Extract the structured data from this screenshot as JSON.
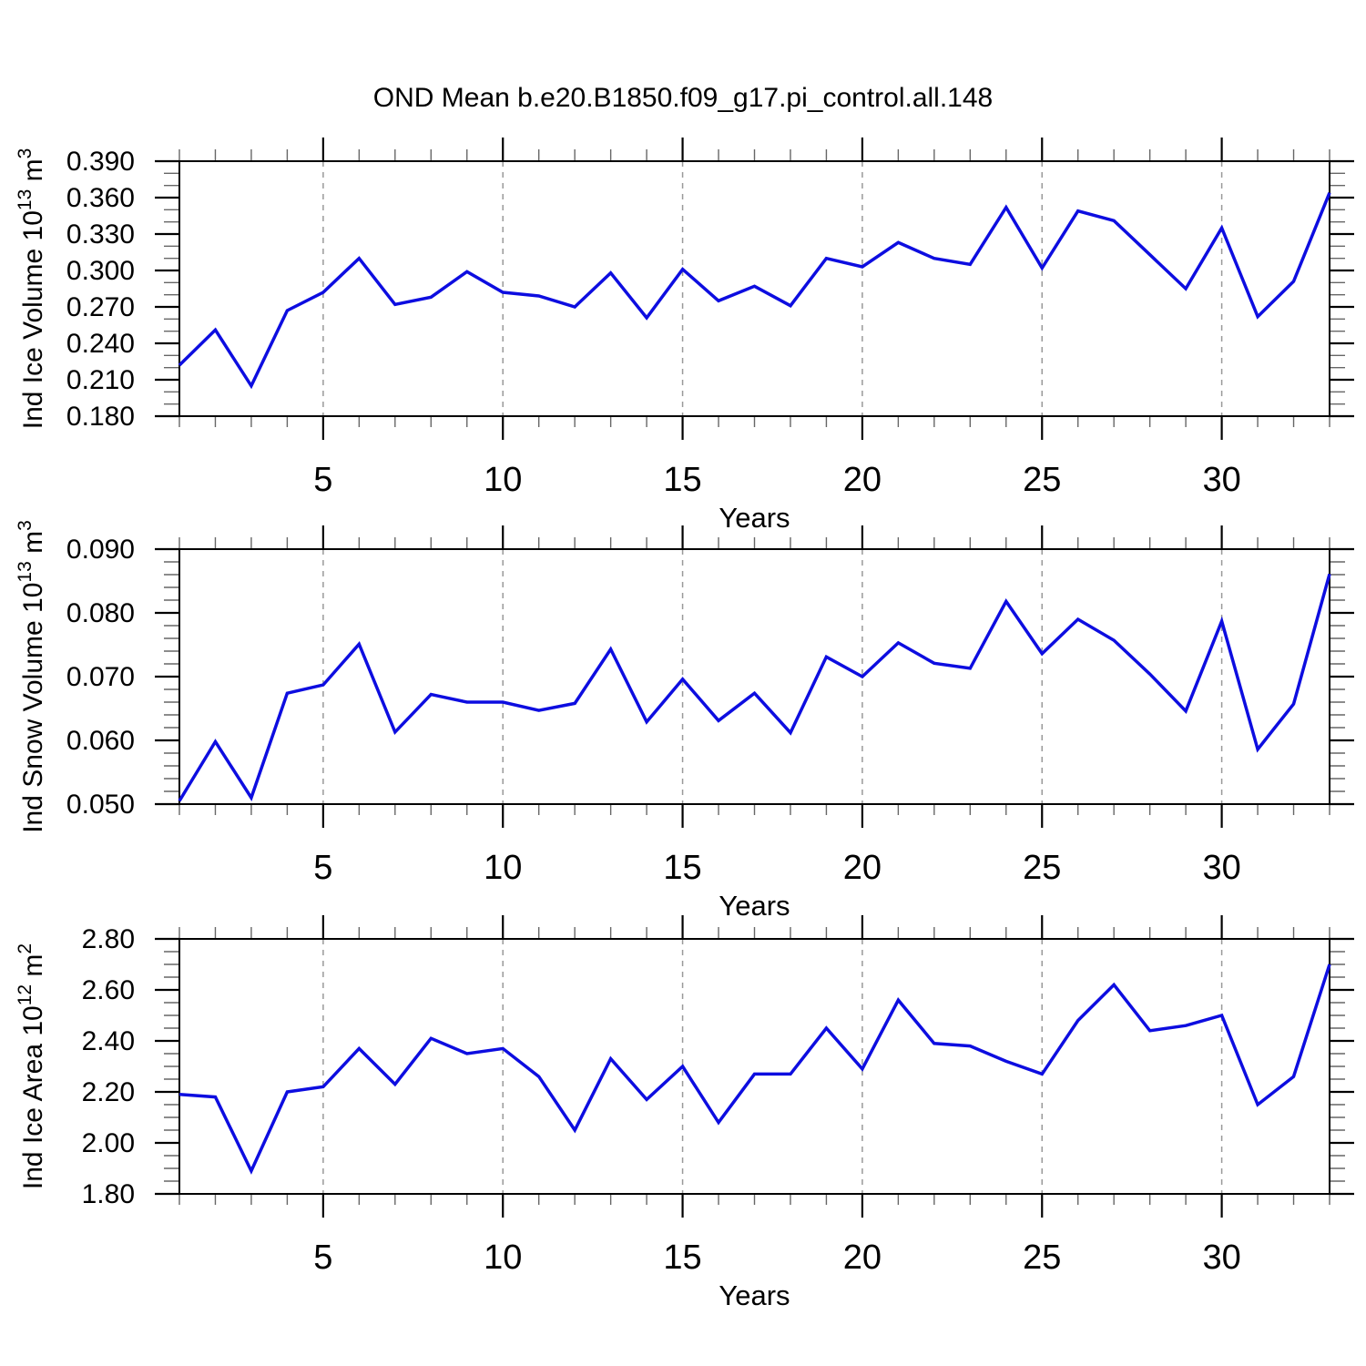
{
  "figure_title": "OND Mean b.e20.B1850.f09_g17.pi_control.all.148",
  "style": {
    "line_color": "#0d0de0",
    "grid_color": "#999999",
    "axis_color": "#000000",
    "minor_tick_color": "#666666",
    "text_color": "#000000",
    "background": "#ffffff"
  },
  "x_axis": {
    "label": "Years",
    "range": [
      1,
      33
    ],
    "major_ticks": [
      5,
      10,
      15,
      20,
      25,
      30
    ],
    "major_tick_labels": [
      "5",
      "10",
      "15",
      "20",
      "25",
      "30"
    ],
    "minor_tick_step": 1
  },
  "chart_data": [
    {
      "type": "line",
      "name": "ind-ice-volume",
      "xlabel": "Years",
      "ylabel": "Ind Ice Volume 10^13 m^3",
      "ylabel_parts": [
        "Ind Ice Volume 10",
        {
          "sup": "13"
        },
        " m",
        {
          "sup": "3"
        }
      ],
      "ylim": [
        0.18,
        0.39
      ],
      "ytick_values": [
        0.18,
        0.21,
        0.24,
        0.27,
        0.3,
        0.33,
        0.36,
        0.39
      ],
      "ytick_labels": [
        "0.180",
        "0.210",
        "0.240",
        "0.270",
        "0.300",
        "0.330",
        "0.360",
        "0.390"
      ],
      "y_minor_step": 0.01,
      "grid": true,
      "legend": "none",
      "x": [
        1,
        2,
        3,
        4,
        5,
        6,
        7,
        8,
        9,
        10,
        11,
        12,
        13,
        14,
        15,
        16,
        17,
        18,
        19,
        20,
        21,
        22,
        23,
        24,
        25,
        26,
        27,
        28,
        29,
        30,
        31,
        32,
        33
      ],
      "values": [
        0.222,
        0.251,
        0.205,
        0.267,
        0.282,
        0.31,
        0.272,
        0.278,
        0.299,
        0.282,
        0.279,
        0.27,
        0.298,
        0.261,
        0.301,
        0.275,
        0.287,
        0.271,
        0.31,
        0.303,
        0.323,
        0.31,
        0.305,
        0.352,
        0.302,
        0.349,
        0.341,
        0.313,
        0.285,
        0.335,
        0.262,
        0.291,
        0.364
      ]
    },
    {
      "type": "line",
      "name": "ind-snow-volume",
      "xlabel": "Years",
      "ylabel": "Ind Snow Volume 10^13 m^3",
      "ylabel_parts": [
        "Ind Snow Volume 10",
        {
          "sup": "13"
        },
        " m",
        {
          "sup": "3"
        }
      ],
      "ylim": [
        0.05,
        0.09
      ],
      "ytick_values": [
        0.05,
        0.06,
        0.07,
        0.08,
        0.09
      ],
      "ytick_labels": [
        "0.050",
        "0.060",
        "0.070",
        "0.080",
        "0.090"
      ],
      "y_minor_step": 0.002,
      "grid": true,
      "legend": "none",
      "x": [
        1,
        2,
        3,
        4,
        5,
        6,
        7,
        8,
        9,
        10,
        11,
        12,
        13,
        14,
        15,
        16,
        17,
        18,
        19,
        20,
        21,
        22,
        23,
        24,
        25,
        26,
        27,
        28,
        29,
        30,
        31,
        32,
        33
      ],
      "values": [
        0.0505,
        0.0598,
        0.051,
        0.0674,
        0.0687,
        0.0751,
        0.0613,
        0.0672,
        0.066,
        0.066,
        0.0647,
        0.0658,
        0.0743,
        0.0629,
        0.0696,
        0.0631,
        0.0674,
        0.0612,
        0.0731,
        0.07,
        0.0753,
        0.0721,
        0.0713,
        0.0818,
        0.0736,
        0.079,
        0.0757,
        0.0704,
        0.0646,
        0.0787,
        0.0586,
        0.0657,
        0.0861
      ]
    },
    {
      "type": "line",
      "name": "ind-ice-area",
      "xlabel": "Years",
      "ylabel": "Ind Ice Area 10^12 m^2",
      "ylabel_parts": [
        "Ind Ice Area 10",
        {
          "sup": "12"
        },
        " m",
        {
          "sup": "2"
        }
      ],
      "ylim": [
        1.8,
        2.8
      ],
      "ytick_values": [
        1.8,
        2.0,
        2.2,
        2.4,
        2.6,
        2.8
      ],
      "ytick_labels": [
        "1.80",
        "2.00",
        "2.20",
        "2.40",
        "2.60",
        "2.80"
      ],
      "y_minor_step": 0.05,
      "grid": true,
      "legend": "none",
      "x": [
        1,
        2,
        3,
        4,
        5,
        6,
        7,
        8,
        9,
        10,
        11,
        12,
        13,
        14,
        15,
        16,
        17,
        18,
        19,
        20,
        21,
        22,
        23,
        24,
        25,
        26,
        27,
        28,
        29,
        30,
        31,
        32,
        33
      ],
      "values": [
        2.19,
        2.18,
        1.89,
        2.2,
        2.22,
        2.37,
        2.23,
        2.41,
        2.35,
        2.37,
        2.26,
        2.05,
        2.33,
        2.17,
        2.3,
        2.08,
        2.27,
        2.27,
        2.45,
        2.29,
        2.56,
        2.39,
        2.38,
        2.32,
        2.27,
        2.48,
        2.62,
        2.44,
        2.46,
        2.5,
        2.15,
        2.26,
        2.7
      ]
    }
  ]
}
